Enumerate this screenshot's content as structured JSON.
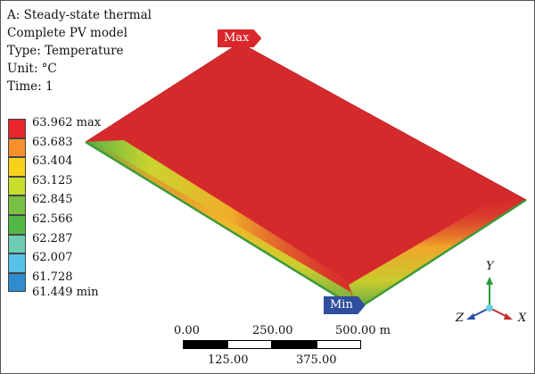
{
  "info": {
    "line1": "A: Steady-state thermal",
    "line2": "Complete PV model",
    "line3": "Type: Temperature",
    "line4": "Unit: °C",
    "line5": "Time: 1"
  },
  "legend": {
    "rows": [
      {
        "label": "63.962 max",
        "color": "#e8262b"
      },
      {
        "label": "63.683",
        "color": "#f7902b"
      },
      {
        "label": "63.404",
        "color": "#f6d21b"
      },
      {
        "label": "63.125",
        "color": "#c9dd2e"
      },
      {
        "label": "62.845",
        "color": "#7ac043"
      },
      {
        "label": "62.566",
        "color": "#53b846"
      },
      {
        "label": "62.287",
        "color": "#6ccdb3"
      },
      {
        "label": "62.007",
        "color": "#56c2e8"
      },
      {
        "label": "61.728",
        "color": "#2e8dcf"
      }
    ],
    "bottom_label": "61.449 min"
  },
  "markers": {
    "max": "Max",
    "min": "Min"
  },
  "scale": {
    "top_labels": [
      "0.00",
      "250.00",
      "500.00 m"
    ],
    "bottom_labels": [
      "125.00",
      "375.00"
    ]
  },
  "axes": {
    "x": "X",
    "y": "Y",
    "z": "Z"
  }
}
